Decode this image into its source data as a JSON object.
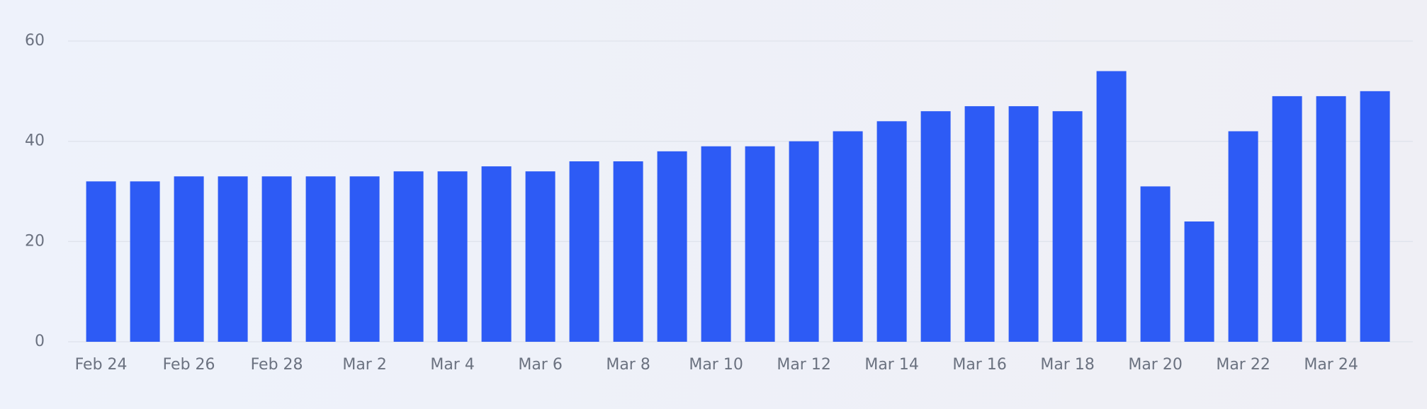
{
  "chart_data": {
    "type": "bar",
    "categories": [
      "Feb 24",
      null,
      "Feb 26",
      null,
      "Feb 28",
      null,
      "Mar 2",
      null,
      "Mar 4",
      null,
      "Mar 6",
      null,
      "Mar 8",
      null,
      "Mar 10",
      null,
      "Mar 12",
      null,
      "Mar 14",
      null,
      "Mar 16",
      null,
      "Mar 18",
      null,
      "Mar 20",
      null,
      "Mar 22",
      null,
      "Mar 24",
      null
    ],
    "values": [
      32,
      32,
      33,
      33,
      33,
      33,
      33,
      34,
      34,
      35,
      34,
      36,
      36,
      38,
      39,
      39,
      40,
      42,
      44,
      46,
      47,
      47,
      46,
      54,
      31,
      24,
      42,
      49,
      49,
      50
    ],
    "color": "#2d5bf5",
    "ylim": [
      0,
      60
    ],
    "yticks": [
      0,
      20,
      40,
      60
    ],
    "grid": true
  }
}
